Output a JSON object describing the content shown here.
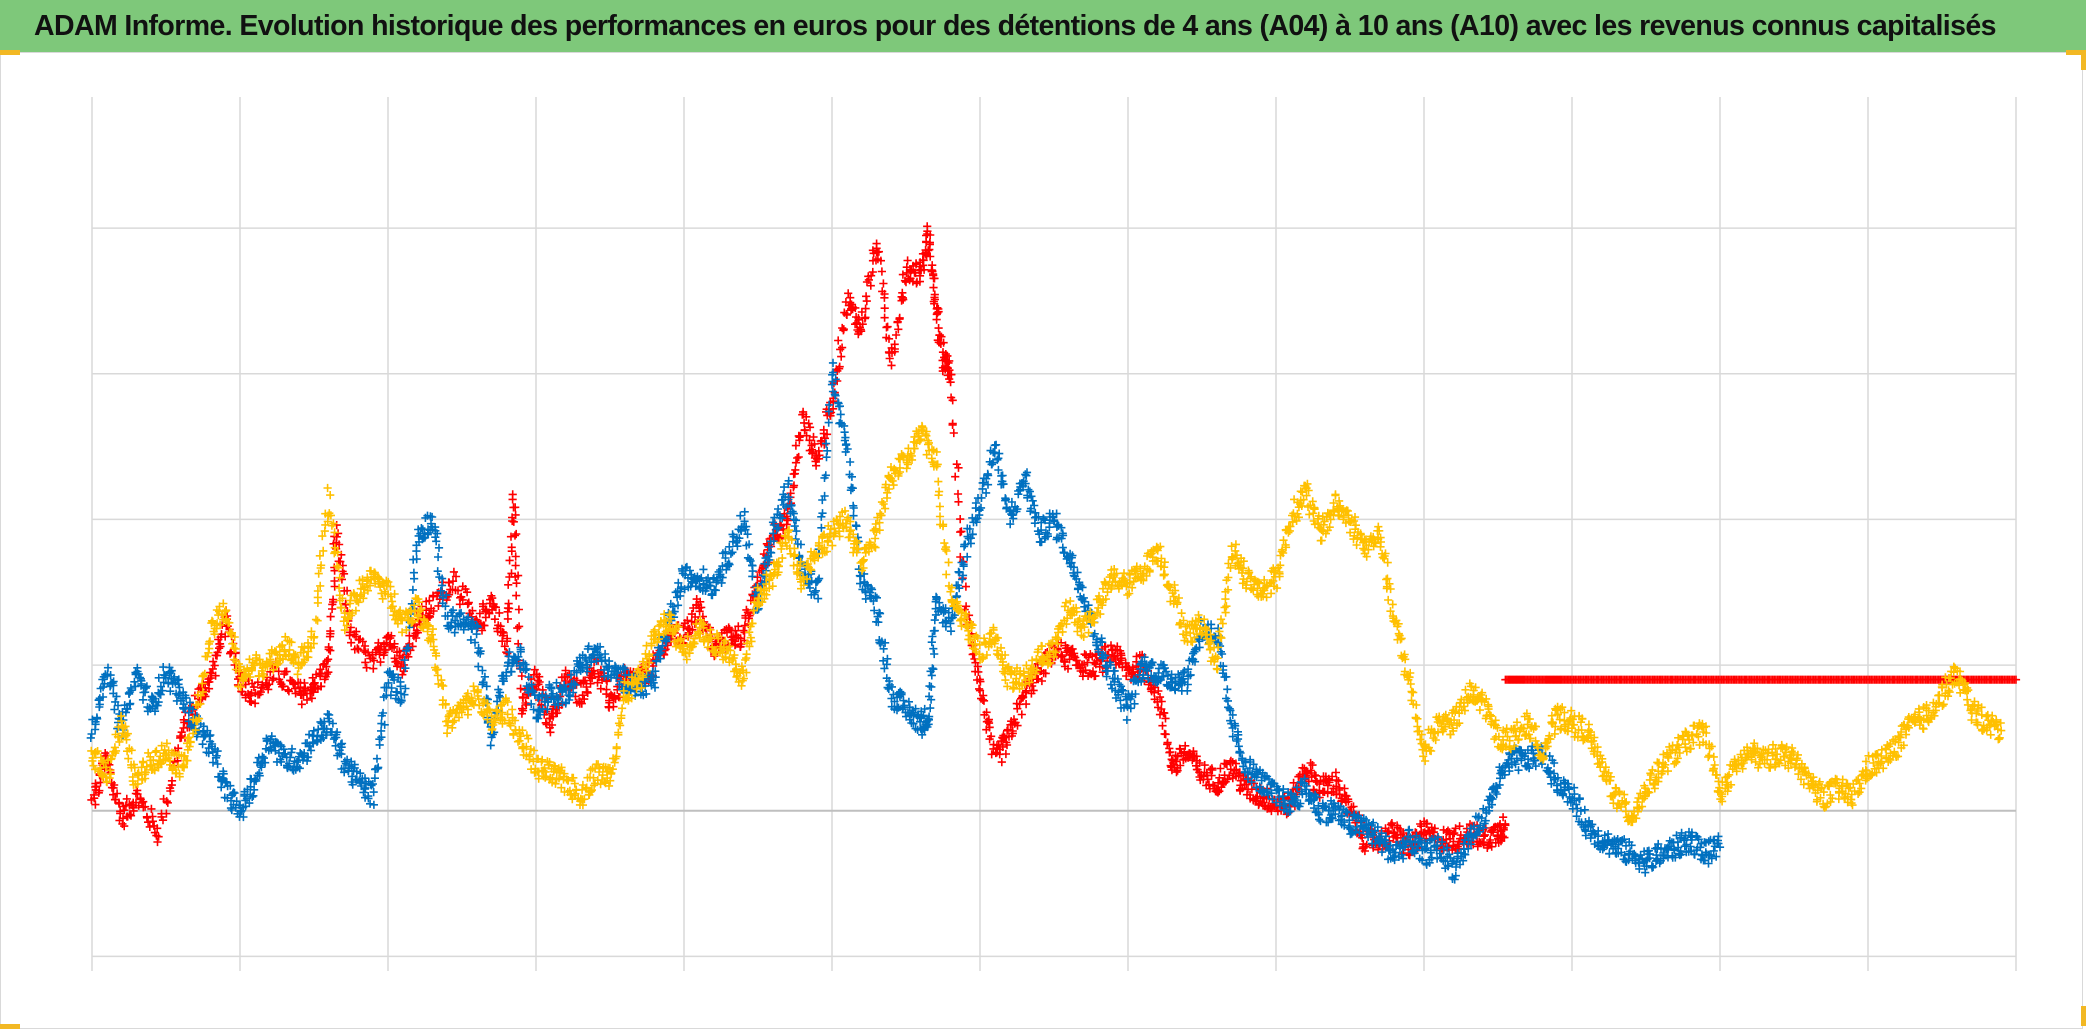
{
  "title": "ADAM Informe. Evolution historique des performances en euros pour des détentions de 4 ans (A04) à 10 ans (A10) avec les revenus connus capitalisés",
  "colors": {
    "title_bar": "#7ec87a",
    "grid": "#d9d9d9",
    "zero_line": "#bfbfbf",
    "corner_marks": "#f2b824"
  },
  "chart_data": {
    "type": "scatter",
    "marker": "plus",
    "title": "ADAM Informe. Evolution historique des performances en euros pour des détentions de 4 ans (A04) à 10 ans (A10) avec les revenus connus capitalisés",
    "xlabel": "",
    "ylabel": "",
    "tick_labels_visible": false,
    "legend": "none",
    "grid": true,
    "xlim": [
      0,
      13
    ],
    "ylim": [
      -1.1,
      4.9
    ],
    "x_gridlines": [
      0,
      1,
      2,
      3,
      4,
      5,
      6,
      7,
      8,
      9,
      10,
      11,
      12,
      13
    ],
    "y_gridlines": [
      -1,
      0,
      1,
      2,
      3,
      4,
      5
    ],
    "reference_line_y": 0,
    "series": [
      {
        "color": "#ff0000",
        "x": [
          0,
          0.1,
          0.2,
          0.3,
          0.45,
          0.6,
          0.7,
          0.8,
          0.9,
          1.0,
          1.1,
          1.25,
          1.4,
          1.5,
          1.6,
          1.65,
          1.75,
          1.9,
          2.0,
          2.1,
          2.2,
          2.3,
          2.45,
          2.6,
          2.7,
          2.8,
          2.85,
          2.9,
          3.0,
          3.1,
          3.2,
          3.3,
          3.4,
          3.5,
          3.6,
          3.7,
          3.8,
          3.9,
          4.0,
          4.1,
          4.2,
          4.3,
          4.4,
          4.5,
          4.6,
          4.7,
          4.8,
          4.9,
          5.0,
          5.1,
          5.2,
          5.3,
          5.4,
          5.5,
          5.6,
          5.65,
          5.7,
          5.75,
          5.8,
          5.9,
          6.0,
          6.1,
          6.2,
          6.3,
          6.4,
          6.5,
          6.6,
          6.7,
          6.8,
          6.9,
          7.0,
          7.1,
          7.2,
          7.3,
          7.4,
          7.5,
          7.6,
          7.7,
          7.8,
          7.9,
          8.0,
          8.1,
          8.2,
          8.3,
          8.4,
          8.5,
          8.6,
          8.7,
          8.8,
          8.9,
          9.0,
          9.1,
          9.2,
          9.3,
          9.4,
          9.5,
          9.55
        ],
        "y": [
          0.05,
          0.35,
          -0.05,
          0.1,
          -0.15,
          0.5,
          0.75,
          0.9,
          1.3,
          0.9,
          0.8,
          0.95,
          0.8,
          0.85,
          1.0,
          1.9,
          1.2,
          1.0,
          1.2,
          1.0,
          1.3,
          1.4,
          1.6,
          1.25,
          1.45,
          1.1,
          2.2,
          0.7,
          0.9,
          0.6,
          0.9,
          0.8,
          1.0,
          0.75,
          0.9,
          0.9,
          1.0,
          1.2,
          1.2,
          1.4,
          1.1,
          1.2,
          1.2,
          1.55,
          1.9,
          2.0,
          2.7,
          2.4,
          2.8,
          3.5,
          3.3,
          3.9,
          3.1,
          3.7,
          3.7,
          3.95,
          3.5,
          3.1,
          3.0,
          1.4,
          0.85,
          0.35,
          0.5,
          0.8,
          0.95,
          1.1,
          1.05,
          1.0,
          1.0,
          1.1,
          0.95,
          1.0,
          0.8,
          0.3,
          0.4,
          0.25,
          0.2,
          0.3,
          0.15,
          0.1,
          0.05,
          0.05,
          0.3,
          0.15,
          0.2,
          0.0,
          -0.2,
          -0.2,
          -0.15,
          -0.25,
          -0.15,
          -0.2,
          -0.2,
          -0.15,
          -0.2,
          -0.15,
          -0.1
        ]
      },
      {
        "color": "#ff0000",
        "x": [
          9.55,
          10.0,
          10.5,
          11.0,
          11.5,
          12.0,
          12.5,
          13.0
        ],
        "y": [
          0.9,
          0.9,
          0.9,
          0.9,
          0.9,
          0.9,
          0.9,
          0.9
        ]
      },
      {
        "color": "#0070c0",
        "x": [
          0,
          0.1,
          0.2,
          0.3,
          0.4,
          0.5,
          0.6,
          0.7,
          0.8,
          0.9,
          1.0,
          1.1,
          1.2,
          1.3,
          1.4,
          1.5,
          1.6,
          1.7,
          1.8,
          1.9,
          2.0,
          2.1,
          2.2,
          2.3,
          2.4,
          2.5,
          2.6,
          2.7,
          2.8,
          2.9,
          3.0,
          3.1,
          3.2,
          3.3,
          3.4,
          3.5,
          3.6,
          3.7,
          3.8,
          3.9,
          4.0,
          4.1,
          4.2,
          4.3,
          4.4,
          4.5,
          4.6,
          4.7,
          4.8,
          4.9,
          5.0,
          5.1,
          5.2,
          5.3,
          5.4,
          5.5,
          5.6,
          5.65,
          5.7,
          5.8,
          5.9,
          6.0,
          6.1,
          6.2,
          6.3,
          6.4,
          6.5,
          6.6,
          6.7,
          6.8,
          6.9,
          7.0,
          7.1,
          7.2,
          7.3,
          7.4,
          7.5,
          7.6,
          7.7,
          7.8,
          7.9,
          8.0,
          8.1,
          8.2,
          8.3,
          8.4,
          8.5,
          8.6,
          8.7,
          8.8,
          8.9,
          9.0,
          9.1,
          9.2,
          9.3,
          9.4,
          9.5,
          9.6,
          9.7,
          9.8,
          9.9,
          10.0,
          10.1,
          10.2,
          10.3,
          10.4,
          10.5,
          10.6,
          10.7,
          10.8,
          10.9,
          11.0
        ],
        "y": [
          0.5,
          1.0,
          0.55,
          0.95,
          0.7,
          0.95,
          0.8,
          0.6,
          0.45,
          0.15,
          0.0,
          0.2,
          0.5,
          0.35,
          0.35,
          0.5,
          0.6,
          0.35,
          0.2,
          0.1,
          0.9,
          0.8,
          1.9,
          2.0,
          1.3,
          1.3,
          1.2,
          0.5,
          1.0,
          1.05,
          0.7,
          0.8,
          0.8,
          1.0,
          1.1,
          0.95,
          0.9,
          0.85,
          0.9,
          1.3,
          1.6,
          1.6,
          1.55,
          1.75,
          2.0,
          1.4,
          1.9,
          2.2,
          1.65,
          1.5,
          3.0,
          2.5,
          1.6,
          1.4,
          0.8,
          0.7,
          0.6,
          0.65,
          1.4,
          1.3,
          1.8,
          2.1,
          2.5,
          2.0,
          2.3,
          1.9,
          2.0,
          1.75,
          1.5,
          1.15,
          0.9,
          0.7,
          1.0,
          0.95,
          0.9,
          0.9,
          1.25,
          1.2,
          0.6,
          0.3,
          0.2,
          0.1,
          0.05,
          0.15,
          0.0,
          0.0,
          -0.1,
          -0.1,
          -0.2,
          -0.3,
          -0.2,
          -0.3,
          -0.25,
          -0.4,
          -0.2,
          -0.05,
          0.2,
          0.35,
          0.35,
          0.4,
          0.2,
          0.1,
          -0.1,
          -0.2,
          -0.25,
          -0.3,
          -0.35,
          -0.3,
          -0.25,
          -0.2,
          -0.3,
          -0.25
        ]
      },
      {
        "color": "#ffc000",
        "x": [
          0,
          0.1,
          0.2,
          0.3,
          0.4,
          0.5,
          0.6,
          0.7,
          0.8,
          0.9,
          1.0,
          1.1,
          1.2,
          1.3,
          1.4,
          1.5,
          1.6,
          1.7,
          1.8,
          1.9,
          2.0,
          2.1,
          2.2,
          2.3,
          2.4,
          2.5,
          2.6,
          2.7,
          2.8,
          2.9,
          3.0,
          3.1,
          3.2,
          3.3,
          3.4,
          3.5,
          3.6,
          3.7,
          3.8,
          3.9,
          4.0,
          4.1,
          4.2,
          4.3,
          4.4,
          4.5,
          4.6,
          4.7,
          4.8,
          4.9,
          5.0,
          5.1,
          5.2,
          5.3,
          5.4,
          5.5,
          5.6,
          5.7,
          5.8,
          5.9,
          6.0,
          6.1,
          6.2,
          6.3,
          6.4,
          6.5,
          6.6,
          6.7,
          6.8,
          6.9,
          7.0,
          7.1,
          7.2,
          7.3,
          7.4,
          7.5,
          7.6,
          7.7,
          7.8,
          7.9,
          8.0,
          8.1,
          8.2,
          8.3,
          8.4,
          8.5,
          8.6,
          8.7,
          8.8,
          8.9,
          9.0,
          9.1,
          9.2,
          9.3,
          9.4,
          9.5,
          9.6,
          9.7,
          9.8,
          9.9,
          10.0,
          10.1,
          10.2,
          10.3,
          10.4,
          10.5,
          10.6,
          10.7,
          10.8,
          10.9,
          11.0,
          11.1,
          11.2,
          11.3,
          11.4,
          11.5,
          11.6,
          11.7,
          11.8,
          11.9,
          12.0,
          12.1,
          12.2,
          12.3,
          12.4,
          12.5,
          12.6,
          12.7,
          12.8,
          12.9
        ],
        "y": [
          0.4,
          0.25,
          0.6,
          0.2,
          0.35,
          0.4,
          0.3,
          0.6,
          1.2,
          1.4,
          0.9,
          1.0,
          1.0,
          1.15,
          1.0,
          1.2,
          2.15,
          1.3,
          1.5,
          1.6,
          1.5,
          1.3,
          1.4,
          1.2,
          0.6,
          0.7,
          0.8,
          0.6,
          0.7,
          0.5,
          0.3,
          0.25,
          0.2,
          0.1,
          0.25,
          0.25,
          0.8,
          0.9,
          1.2,
          1.3,
          1.1,
          1.25,
          1.15,
          1.1,
          0.9,
          1.45,
          1.6,
          1.9,
          1.6,
          1.8,
          1.9,
          2.0,
          1.7,
          1.9,
          2.3,
          2.4,
          2.6,
          2.4,
          1.5,
          1.3,
          1.1,
          1.2,
          0.9,
          0.9,
          1.05,
          1.1,
          1.4,
          1.25,
          1.4,
          1.6,
          1.55,
          1.65,
          1.8,
          1.5,
          1.2,
          1.3,
          1.0,
          1.8,
          1.6,
          1.5,
          1.6,
          2.0,
          2.2,
          1.9,
          2.1,
          2.0,
          1.8,
          1.9,
          1.3,
          0.9,
          0.4,
          0.6,
          0.6,
          0.8,
          0.75,
          0.5,
          0.5,
          0.6,
          0.4,
          0.65,
          0.6,
          0.55,
          0.3,
          0.1,
          -0.05,
          0.15,
          0.3,
          0.4,
          0.5,
          0.55,
          0.1,
          0.3,
          0.4,
          0.35,
          0.4,
          0.35,
          0.2,
          0.1,
          0.15,
          0.1,
          0.3,
          0.35,
          0.45,
          0.6,
          0.65,
          0.8,
          0.95,
          0.7,
          0.6,
          0.55
        ]
      }
    ]
  }
}
